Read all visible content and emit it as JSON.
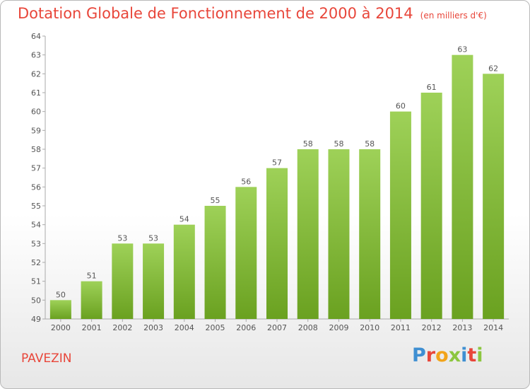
{
  "title": "Dotation Globale de Fonctionnement de 2000 à 2014",
  "subtitle": "(en milliers d'€)",
  "city": "PAVEZIN",
  "logo_text": "Proxiti",
  "colors": {
    "title": "#e8463a",
    "bar_light": "#9ed158",
    "bar_dark": "#6aa120",
    "logo": [
      "#3f8fd2",
      "#e8463a",
      "#f2a41a",
      "#8cc63f",
      "#3f8fd2",
      "#e8463a",
      "#8cc63f"
    ]
  },
  "chart_data": {
    "type": "bar",
    "title": "Dotation Globale de Fonctionnement de 2000 à 2014",
    "subtitle": "(en milliers d'€)",
    "categories": [
      "2000",
      "2001",
      "2002",
      "2003",
      "2004",
      "2005",
      "2006",
      "2007",
      "2008",
      "2009",
      "2010",
      "2011",
      "2012",
      "2013",
      "2014"
    ],
    "values": [
      50,
      51,
      53,
      53,
      54,
      55,
      56,
      57,
      58,
      58,
      58,
      60,
      61,
      63,
      62
    ],
    "ylim": [
      49,
      64
    ],
    "yticks": [
      49,
      50,
      51,
      52,
      53,
      54,
      55,
      56,
      57,
      58,
      59,
      60,
      61,
      62,
      63,
      64
    ],
    "grid": false,
    "legend": "none"
  }
}
